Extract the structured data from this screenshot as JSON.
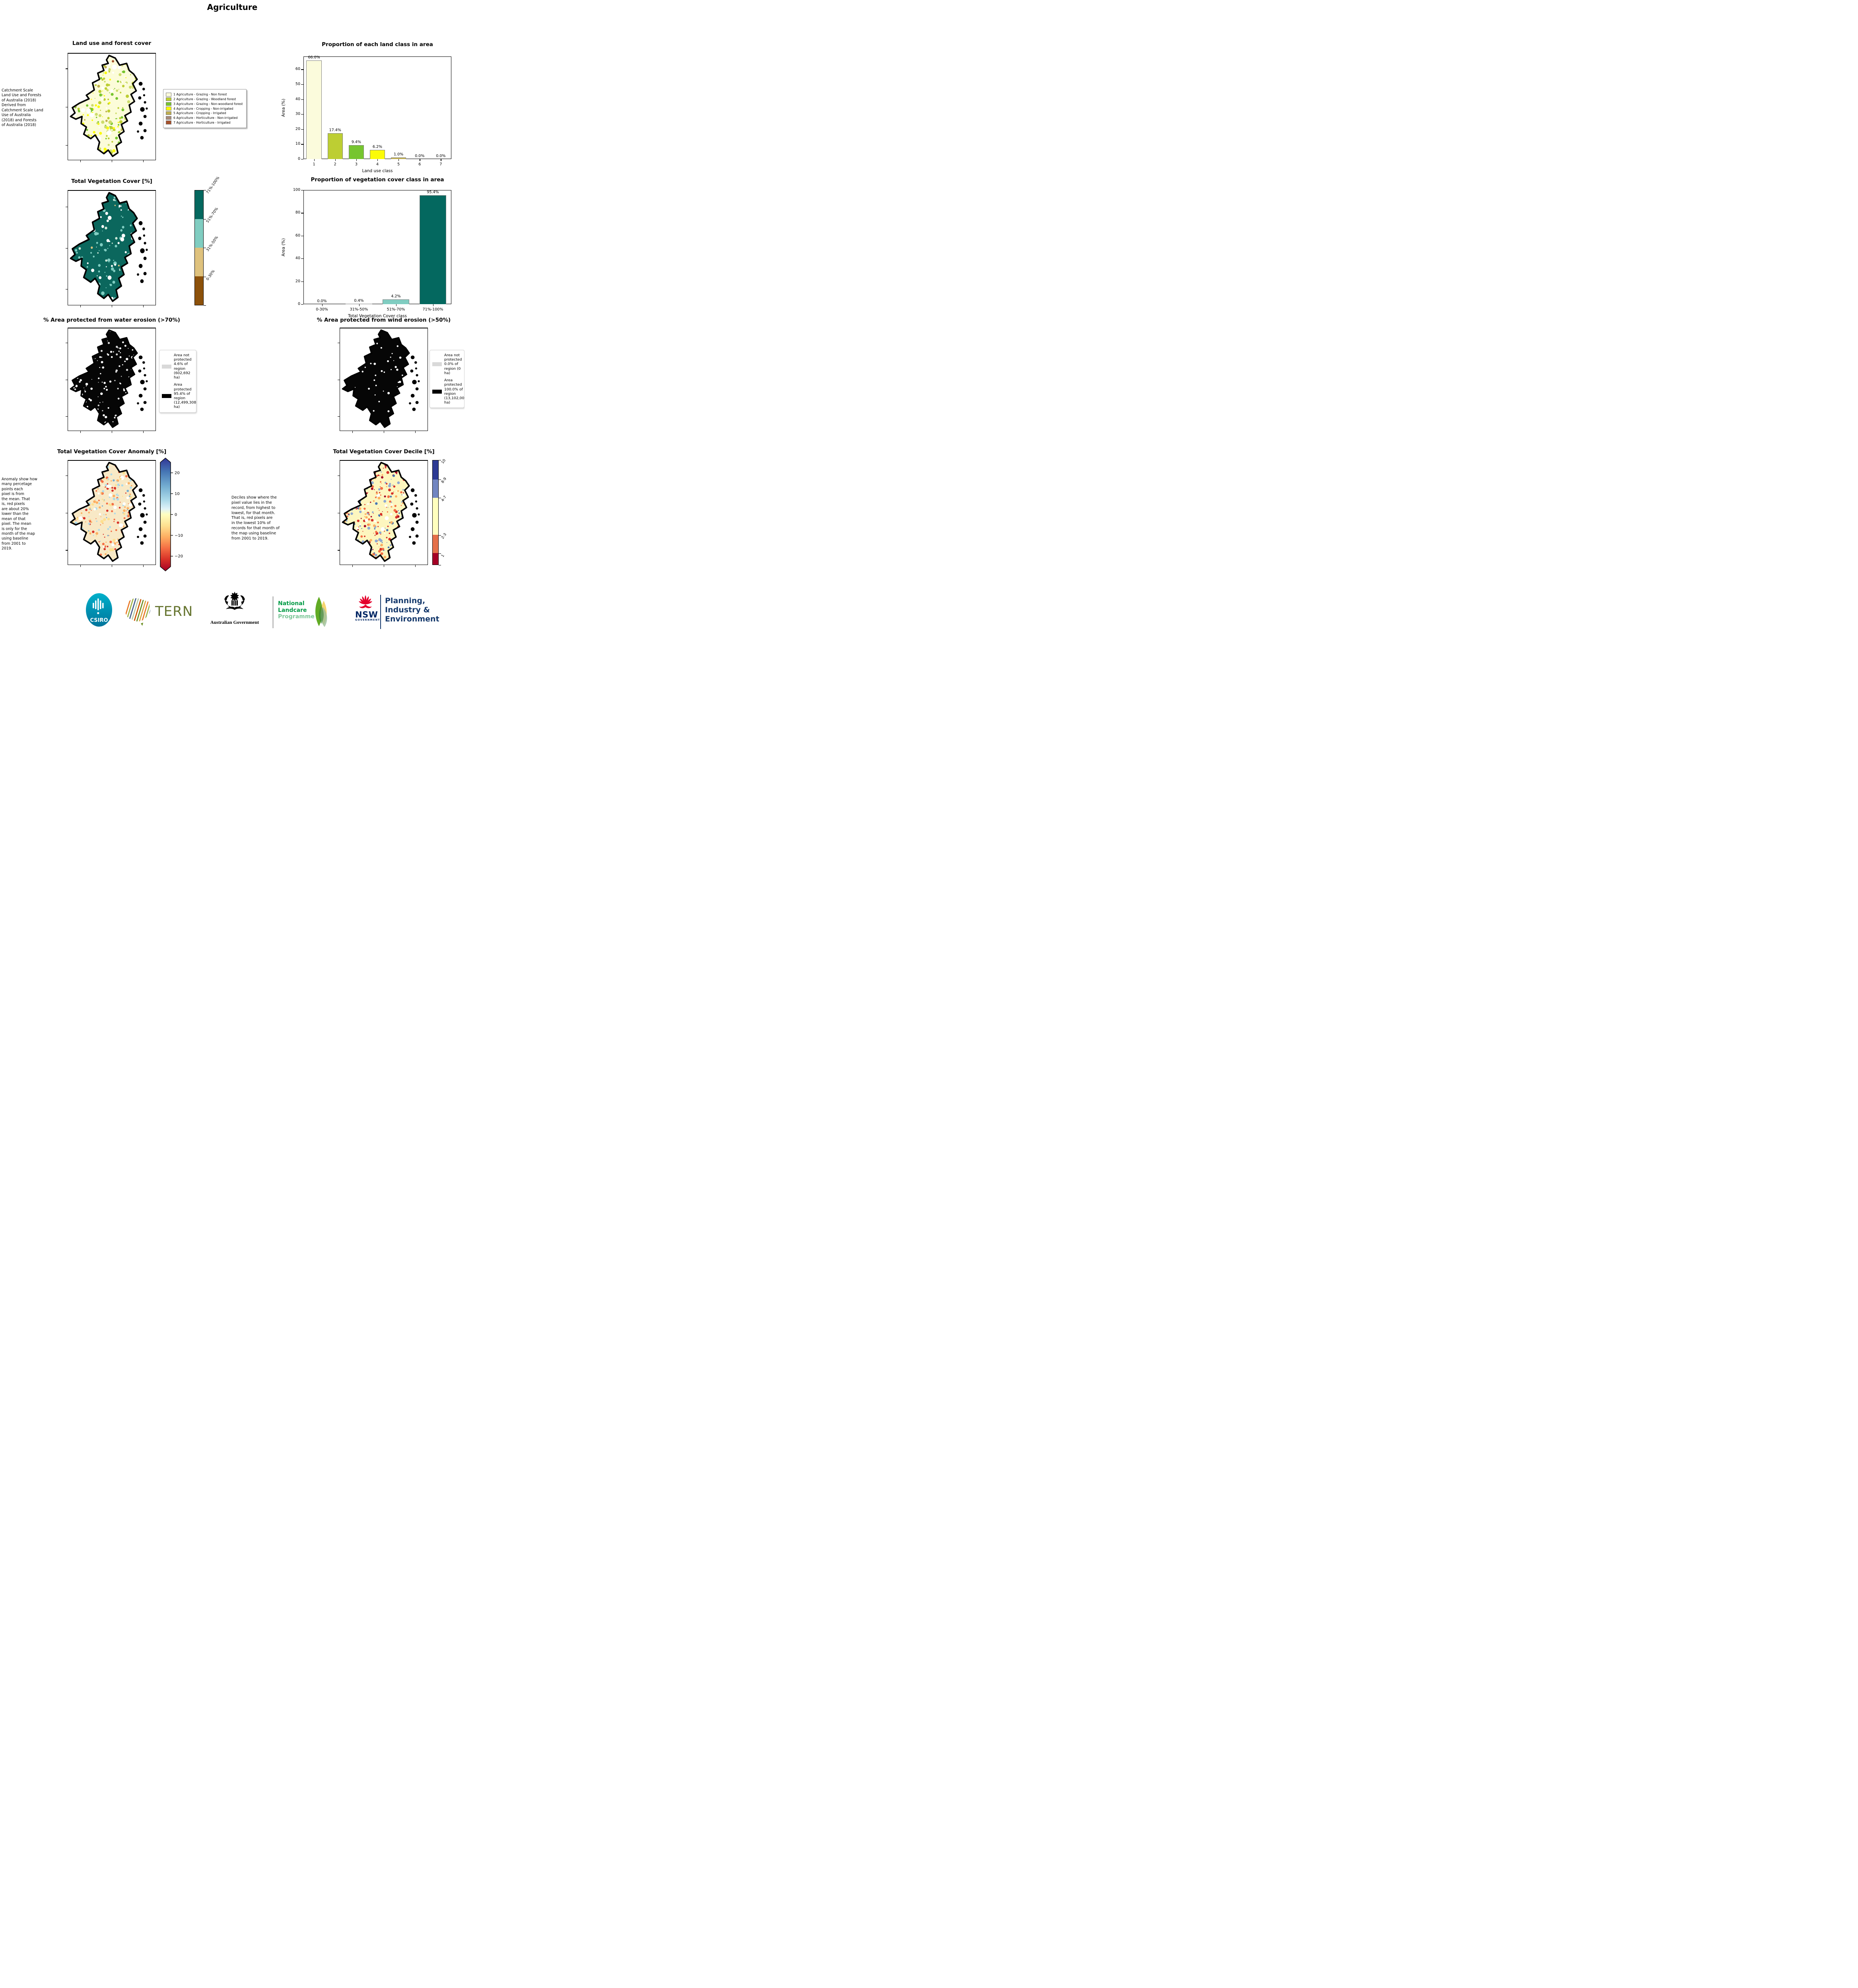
{
  "page_title": "Agriculture",
  "panels": {
    "land_use": {
      "title": "Land use and forest cover",
      "side_note": " Catchment Scale\nLand Use and Forests\nof Australia (2018)\nDerived from\nCatchment Scale Land\nUse of Australia\n(2018) and Forests\nof Australia (2018)",
      "legend": [
        {
          "label": "1 Agriculture - Grazing - Non forest",
          "color": "#fbfbdc"
        },
        {
          "label": "2 Agriculture - Grazing - Woodland forest",
          "color": "#bdce33"
        },
        {
          "label": "3 Agriculture - Grazing - Non-woodland forest",
          "color": "#76c52f"
        },
        {
          "label": "4 Agriculture - Cropping - Non-irrigated",
          "color": "#fbfb09"
        },
        {
          "label": "5 Agriculture - Cropping - Irrigated",
          "color": "#bfae4e"
        },
        {
          "label": "6 Agriculture - Horticulture - Non-irrigated",
          "color": "#a78a79"
        },
        {
          "label": "7 Agriculture - Horticulture - Irrigated",
          "color": "#a5522d"
        }
      ]
    },
    "veg_cover": {
      "title": "Total Vegetation Cover [%]",
      "colorbar": [
        {
          "label": "71%-100%",
          "color": "#04685f"
        },
        {
          "label": "51%-70%",
          "color": "#80cdc1"
        },
        {
          "label": "31%-50%",
          "color": "#dfc27d"
        },
        {
          "label": "0-30%",
          "color": "#8c510a"
        }
      ]
    },
    "water_erosion": {
      "title": "% Area protected from water erosion (>70%)",
      "legend": [
        {
          "label": "Area not protected 4.6% of region (602,692 ha)",
          "color": "#d9d9d9"
        },
        {
          "label": "Area protected 95.4% of region (12,499,308 ha)",
          "color": "#000000"
        }
      ]
    },
    "wind_erosion": {
      "title": "% Area protected from wind erosion (>50%)",
      "legend": [
        {
          "label": "Area not protected 0.0% of region (0 ha)",
          "color": "#d9d9d9"
        },
        {
          "label": "Area protected 100.0% of region (13,102,000 ha)",
          "color": "#000000"
        }
      ]
    },
    "anomaly": {
      "title": "Total Vegetation Cover Anomaly [%]",
      "side_note": "Anomaly show how\nmany percetage\npoints each\npixel is from\nthe mean. That\nis, red pixels\nare about 20%\nlower than the\nmean of that\npixel. The mean\nis only for the\nmonth of the map\nusing baseline\nfrom 2001 to\n2019.",
      "colorbar_ticks": [
        "20",
        "10",
        "0",
        "−10",
        "−20"
      ]
    },
    "decile": {
      "title": "Total Vegetation Cover Decile [%]",
      "side_note": "Deciles show where the\npixel value lies in the\nrecord, from highest to\nlowest, for that month.\nThat is, red pixels are\nin the lowest 10% of\nrecords for that month of\nthe map using baseline\nfrom 2001 to 2019.",
      "colorbar": [
        {
          "label": "10",
          "color": "#2d3a94",
          "frac": 0.185
        },
        {
          "label": "8-9",
          "color": "#7286c1",
          "frac": 0.175
        },
        {
          "label": "4-7",
          "color": "#ffffbf",
          "frac": 0.355
        },
        {
          "label": "2-3",
          "color": "#e5714a",
          "frac": 0.175
        },
        {
          "label": "1",
          "color": "#a50026",
          "frac": 0.11
        }
      ]
    }
  },
  "chart_data": [
    {
      "type": "bar",
      "title": "Proportion of each land class in area",
      "xlabel": "Land use class",
      "ylabel": "Area (%)",
      "categories": [
        "1",
        "2",
        "3",
        "4",
        "5",
        "6",
        "7"
      ],
      "values": [
        66.0,
        17.4,
        9.4,
        6.2,
        1.0,
        0.0,
        0.0
      ],
      "bar_labels": [
        "66.0%",
        "17.4%",
        "9.4%",
        "6.2%",
        "1.0%",
        "0.0%",
        "0.0%"
      ],
      "bar_colors": [
        "#fbfbdc",
        "#bdce33",
        "#76c52f",
        "#fbfb09",
        "#bfae4e",
        "#a78a79",
        "#a5522d"
      ],
      "yticks": [
        0,
        10,
        20,
        30,
        40,
        50,
        60
      ],
      "ylim": [
        0,
        68.6
      ],
      "grid": false,
      "legend_position": "none"
    },
    {
      "type": "bar",
      "title": "Proportion of vegetation cover class in area",
      "xlabel": "Total Vegetation Cover class",
      "ylabel": "Area (%)",
      "categories": [
        "0-30%",
        "31%-50%",
        "51%-70%",
        "71%-100%"
      ],
      "values": [
        0.0,
        0.4,
        4.2,
        95.4
      ],
      "bar_labels": [
        "0.0%",
        "0.4%",
        "4.2%",
        "95.4%"
      ],
      "bar_colors": [
        "#8c510a",
        "#dfc27d",
        "#80cdc1",
        "#04685f"
      ],
      "yticks": [
        0,
        20,
        40,
        60,
        80,
        100
      ],
      "ylim": [
        0,
        100
      ],
      "grid": false,
      "legend_position": "none"
    }
  ],
  "footer": {
    "csiro": "CSIRO",
    "tern": "TERN",
    "aus_gov": "Australian Government",
    "landcare": [
      "National",
      "Landcare",
      "Programme"
    ],
    "nsw": "NSW",
    "nsw_sub": "GOVERNMENT",
    "planning": [
      "Planning,",
      "Industry &",
      "Environment"
    ]
  }
}
